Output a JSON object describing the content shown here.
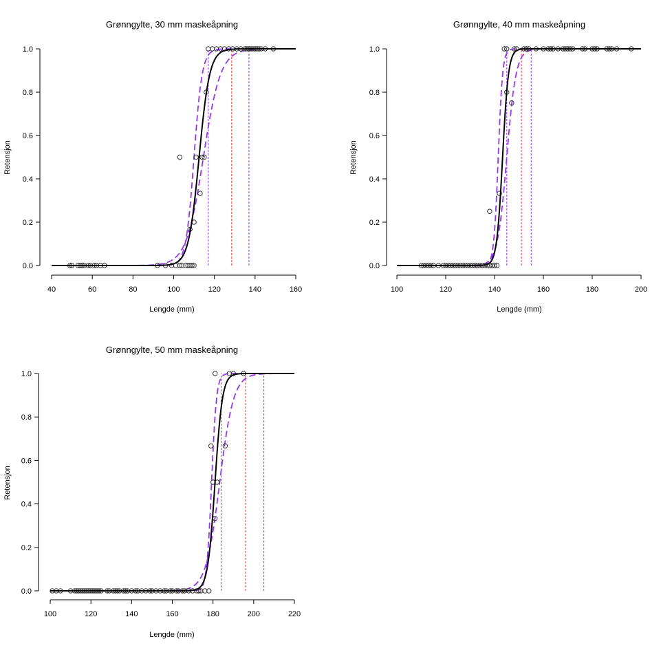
{
  "chart_data": [
    {
      "type": "line",
      "title": "Grønngylte, 30 mm maskeåpning",
      "xlabel": "Lengde (mm)",
      "ylabel": "Retensjon",
      "xlim": [
        40,
        160
      ],
      "ylim": [
        0,
        1
      ],
      "xticks": [
        40,
        60,
        80,
        100,
        120,
        140,
        160
      ],
      "yticks": [
        "0.0",
        "0.2",
        "0.4",
        "0.6",
        "0.8",
        "1.0"
      ],
      "curves": {
        "fit": {
          "l50": 112.5,
          "s": 2.6,
          "color": "#000000"
        },
        "lower": {
          "l50": 110.0,
          "s": 2.0,
          "color": "#9933ff"
        },
        "upper": {
          "l50": 114.6,
          "s": 4.2,
          "color": "#9933ff"
        }
      },
      "vlines": [
        {
          "x": 117,
          "color": "#9933ff"
        },
        {
          "x": 128.5,
          "color": "#ff3333"
        },
        {
          "x": 137,
          "color": "#9933ff"
        }
      ],
      "points": [
        {
          "x": 49,
          "y": 0
        },
        {
          "x": 50,
          "y": 0
        },
        {
          "x": 53,
          "y": 0
        },
        {
          "x": 54,
          "y": 0
        },
        {
          "x": 55,
          "y": 0
        },
        {
          "x": 56,
          "y": 0
        },
        {
          "x": 58,
          "y": 0
        },
        {
          "x": 59,
          "y": 0
        },
        {
          "x": 61,
          "y": 0
        },
        {
          "x": 62,
          "y": 0
        },
        {
          "x": 64,
          "y": 0
        },
        {
          "x": 66,
          "y": 0
        },
        {
          "x": 92,
          "y": 0
        },
        {
          "x": 96,
          "y": 0
        },
        {
          "x": 99,
          "y": 0
        },
        {
          "x": 101,
          "y": 0
        },
        {
          "x": 103,
          "y": 0
        },
        {
          "x": 104,
          "y": 0
        },
        {
          "x": 106,
          "y": 0
        },
        {
          "x": 107,
          "y": 0
        },
        {
          "x": 108,
          "y": 0
        },
        {
          "x": 109,
          "y": 0
        },
        {
          "x": 110,
          "y": 0
        },
        {
          "x": 103,
          "y": 0.5
        },
        {
          "x": 111,
          "y": 0.5
        },
        {
          "x": 114,
          "y": 0.5
        },
        {
          "x": 115,
          "y": 0.5
        },
        {
          "x": 108,
          "y": 0.167
        },
        {
          "x": 110,
          "y": 0.2
        },
        {
          "x": 113,
          "y": 0.333
        },
        {
          "x": 116,
          "y": 0.8
        },
        {
          "x": 117,
          "y": 1
        },
        {
          "x": 119,
          "y": 1
        },
        {
          "x": 121,
          "y": 1
        },
        {
          "x": 123,
          "y": 1
        },
        {
          "x": 125,
          "y": 1
        },
        {
          "x": 127,
          "y": 1
        },
        {
          "x": 129,
          "y": 1
        },
        {
          "x": 131,
          "y": 1
        },
        {
          "x": 133,
          "y": 1
        },
        {
          "x": 135,
          "y": 1
        },
        {
          "x": 136,
          "y": 1
        },
        {
          "x": 137,
          "y": 1
        },
        {
          "x": 138,
          "y": 1
        },
        {
          "x": 139,
          "y": 1
        },
        {
          "x": 140,
          "y": 1
        },
        {
          "x": 141,
          "y": 1
        },
        {
          "x": 142,
          "y": 1
        },
        {
          "x": 143,
          "y": 1
        },
        {
          "x": 145,
          "y": 1
        },
        {
          "x": 149,
          "y": 1
        }
      ]
    },
    {
      "type": "line",
      "title": "Grønngylte, 40 mm maskeåpning",
      "xlabel": "Lengde (mm)",
      "ylabel": "Retensjon",
      "xlim": [
        100,
        200
      ],
      "ylim": [
        0,
        1
      ],
      "xticks": [
        100,
        120,
        140,
        160,
        180,
        200
      ],
      "yticks": [
        "0.0",
        "0.2",
        "0.4",
        "0.6",
        "0.8",
        "1.0"
      ],
      "curves": {
        "fit": {
          "l50": 143.3,
          "s": 1.2,
          "color": "#000000"
        },
        "lower": {
          "l50": 141.5,
          "s": 0.9,
          "color": "#9933ff"
        },
        "upper": {
          "l50": 145.0,
          "s": 1.9,
          "color": "#9933ff"
        }
      },
      "vlines": [
        {
          "x": 145,
          "color": "#9933ff"
        },
        {
          "x": 151,
          "color": "#ff3333"
        },
        {
          "x": 155,
          "color": "#9933ff"
        }
      ],
      "points": [
        {
          "x": 110,
          "y": 0
        },
        {
          "x": 111,
          "y": 0
        },
        {
          "x": 112,
          "y": 0
        },
        {
          "x": 113,
          "y": 0
        },
        {
          "x": 114,
          "y": 0
        },
        {
          "x": 115,
          "y": 0
        },
        {
          "x": 117,
          "y": 0
        },
        {
          "x": 119,
          "y": 0
        },
        {
          "x": 120,
          "y": 0
        },
        {
          "x": 121,
          "y": 0
        },
        {
          "x": 122,
          "y": 0
        },
        {
          "x": 123,
          "y": 0
        },
        {
          "x": 124,
          "y": 0
        },
        {
          "x": 125,
          "y": 0
        },
        {
          "x": 126,
          "y": 0
        },
        {
          "x": 127,
          "y": 0
        },
        {
          "x": 128,
          "y": 0
        },
        {
          "x": 129,
          "y": 0
        },
        {
          "x": 130,
          "y": 0
        },
        {
          "x": 131,
          "y": 0
        },
        {
          "x": 132,
          "y": 0
        },
        {
          "x": 133,
          "y": 0
        },
        {
          "x": 134,
          "y": 0
        },
        {
          "x": 135,
          "y": 0
        },
        {
          "x": 136,
          "y": 0
        },
        {
          "x": 137,
          "y": 0
        },
        {
          "x": 138,
          "y": 0
        },
        {
          "x": 139,
          "y": 0
        },
        {
          "x": 140,
          "y": 0
        },
        {
          "x": 141,
          "y": 0
        },
        {
          "x": 138,
          "y": 0.25
        },
        {
          "x": 142,
          "y": 0.333
        },
        {
          "x": 145,
          "y": 0.8
        },
        {
          "x": 147,
          "y": 0.75
        },
        {
          "x": 144,
          "y": 1
        },
        {
          "x": 145,
          "y": 1
        },
        {
          "x": 148,
          "y": 1
        },
        {
          "x": 149,
          "y": 1
        },
        {
          "x": 152,
          "y": 1
        },
        {
          "x": 153,
          "y": 1
        },
        {
          "x": 154,
          "y": 1
        },
        {
          "x": 157,
          "y": 1
        },
        {
          "x": 160,
          "y": 1
        },
        {
          "x": 162,
          "y": 1
        },
        {
          "x": 163,
          "y": 1
        },
        {
          "x": 164,
          "y": 1
        },
        {
          "x": 166,
          "y": 1
        },
        {
          "x": 168,
          "y": 1
        },
        {
          "x": 169,
          "y": 1
        },
        {
          "x": 170,
          "y": 1
        },
        {
          "x": 171,
          "y": 1
        },
        {
          "x": 172,
          "y": 1
        },
        {
          "x": 176,
          "y": 1
        },
        {
          "x": 177,
          "y": 1
        },
        {
          "x": 180,
          "y": 1
        },
        {
          "x": 181,
          "y": 1
        },
        {
          "x": 182,
          "y": 1
        },
        {
          "x": 186,
          "y": 1
        },
        {
          "x": 187,
          "y": 1
        },
        {
          "x": 188,
          "y": 1
        },
        {
          "x": 190,
          "y": 1
        },
        {
          "x": 196,
          "y": 1
        }
      ]
    },
    {
      "type": "line",
      "title": "Grønngylte, 50 mm maskeåpning",
      "xlabel": "Lengde (mm)",
      "ylabel": "Retensjon",
      "xlim": [
        100,
        220
      ],
      "ylim": [
        0,
        1
      ],
      "xticks": [
        100,
        120,
        140,
        160,
        180,
        200,
        220
      ],
      "yticks": [
        "0.0",
        "0.2",
        "0.4",
        "0.6",
        "0.8",
        "1.0"
      ],
      "curves": {
        "fit": {
          "l50": 181.0,
          "s": 1.8,
          "color": "#000000"
        },
        "lower": {
          "l50": 179.3,
          "s": 1.2,
          "color": "#9933ff"
        },
        "upper": {
          "l50": 183.3,
          "s": 3.4,
          "color": "#9933ff"
        }
      },
      "vlines": [
        {
          "x": 184,
          "color": "#9933ff"
        },
        {
          "x": 196,
          "color": "#ff3333"
        },
        {
          "x": 205,
          "color": "#9933ff"
        }
      ],
      "points": [
        {
          "x": 101,
          "y": 0
        },
        {
          "x": 103,
          "y": 0
        },
        {
          "x": 105,
          "y": 0
        },
        {
          "x": 110,
          "y": 0
        },
        {
          "x": 112,
          "y": 0
        },
        {
          "x": 113,
          "y": 0
        },
        {
          "x": 114,
          "y": 0
        },
        {
          "x": 115,
          "y": 0
        },
        {
          "x": 116,
          "y": 0
        },
        {
          "x": 117,
          "y": 0
        },
        {
          "x": 118,
          "y": 0
        },
        {
          "x": 119,
          "y": 0
        },
        {
          "x": 120,
          "y": 0
        },
        {
          "x": 121,
          "y": 0
        },
        {
          "x": 122,
          "y": 0
        },
        {
          "x": 123,
          "y": 0
        },
        {
          "x": 124,
          "y": 0
        },
        {
          "x": 125,
          "y": 0
        },
        {
          "x": 128,
          "y": 0
        },
        {
          "x": 129,
          "y": 0
        },
        {
          "x": 131,
          "y": 0
        },
        {
          "x": 132,
          "y": 0
        },
        {
          "x": 133,
          "y": 0
        },
        {
          "x": 134,
          "y": 0
        },
        {
          "x": 136,
          "y": 0
        },
        {
          "x": 137,
          "y": 0
        },
        {
          "x": 138,
          "y": 0
        },
        {
          "x": 140,
          "y": 0
        },
        {
          "x": 142,
          "y": 0
        },
        {
          "x": 143,
          "y": 0
        },
        {
          "x": 145,
          "y": 0
        },
        {
          "x": 147,
          "y": 0
        },
        {
          "x": 149,
          "y": 0
        },
        {
          "x": 150,
          "y": 0
        },
        {
          "x": 152,
          "y": 0
        },
        {
          "x": 154,
          "y": 0
        },
        {
          "x": 156,
          "y": 0
        },
        {
          "x": 157,
          "y": 0
        },
        {
          "x": 159,
          "y": 0
        },
        {
          "x": 160,
          "y": 0
        },
        {
          "x": 162,
          "y": 0
        },
        {
          "x": 163,
          "y": 0
        },
        {
          "x": 165,
          "y": 0
        },
        {
          "x": 166,
          "y": 0
        },
        {
          "x": 168,
          "y": 0
        },
        {
          "x": 170,
          "y": 0
        },
        {
          "x": 172,
          "y": 0
        },
        {
          "x": 173,
          "y": 0
        },
        {
          "x": 174,
          "y": 0
        },
        {
          "x": 176,
          "y": 0
        },
        {
          "x": 178,
          "y": 0
        },
        {
          "x": 179,
          "y": 0.667
        },
        {
          "x": 180,
          "y": 0.5
        },
        {
          "x": 182,
          "y": 0.5
        },
        {
          "x": 181,
          "y": 0.333
        },
        {
          "x": 186,
          "y": 0.667
        },
        {
          "x": 181,
          "y": 1
        },
        {
          "x": 188,
          "y": 1
        },
        {
          "x": 190,
          "y": 1
        },
        {
          "x": 195,
          "y": 1
        }
      ]
    }
  ]
}
